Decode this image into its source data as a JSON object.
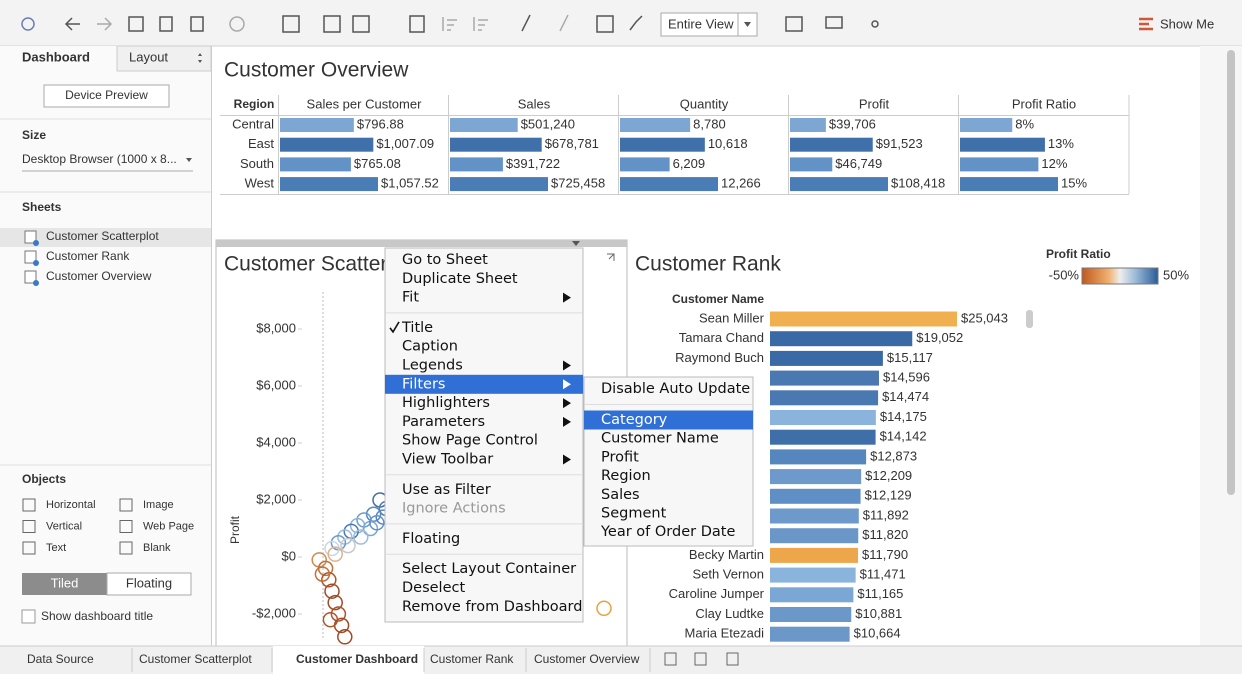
{
  "toolbar": {
    "view": "Entire View",
    "show_me": "Show Me"
  },
  "side_panel": {
    "tabs": [
      "Dashboard",
      "Layout"
    ],
    "device_preview": "Device Preview",
    "size_heading": "Size",
    "size_value": "Desktop Browser (1000 x 8...",
    "sheets_heading": "Sheets",
    "sheets": [
      "Customer Scatterplot",
      "Customer Rank",
      "Customer Overview"
    ],
    "objects_heading": "Objects",
    "objects": [
      "Horizontal",
      "Image",
      "Vertical",
      "Web Page",
      "Text",
      "Blank"
    ],
    "modes": [
      "Tiled",
      "Floating"
    ],
    "show_title": "Show dashboard title"
  },
  "overview": {
    "title": "Customer Overview",
    "region_header": "Region",
    "regions": [
      "Central",
      "East",
      "South",
      "West"
    ],
    "row_colors": [
      "#7ea6d2",
      "#3f70aa",
      "#6392c6",
      "#4a7db5"
    ],
    "columns": [
      {
        "name": "Sales per Customer",
        "values": [
          796.88,
          1007.09,
          765.08,
          1057.52
        ],
        "value_labels": [
          "$796.88",
          "$1,007.09",
          "$765.08",
          "$1,057.52"
        ]
      },
      {
        "name": "Sales",
        "values": [
          501240,
          678781,
          391722,
          725458
        ],
        "value_labels": [
          "$501,240",
          "$678,781",
          "$391,722",
          "$725,458"
        ]
      },
      {
        "name": "Quantity",
        "values": [
          8780,
          10618,
          6209,
          12266
        ],
        "value_labels": [
          "8,780",
          "10,618",
          "6,209",
          "12,266"
        ]
      },
      {
        "name": "Profit",
        "values": [
          39706,
          91523,
          46749,
          108418
        ],
        "value_labels": [
          "$39,706",
          "$91,523",
          "$46,749",
          "$108,418"
        ]
      },
      {
        "name": "Profit Ratio",
        "values": [
          8,
          13,
          12,
          15
        ],
        "value_labels": [
          "8%",
          "13%",
          "12%",
          "15%"
        ]
      }
    ]
  },
  "scatter": {
    "title": "Customer Scatter",
    "y_label": "Profit",
    "xlim": [
      0,
      10000
    ],
    "ylim": [
      -3000,
      9000
    ],
    "yticks": [
      {
        "value": 8000,
        "label": "$8,000"
      },
      {
        "value": 6000,
        "label": "$6,000"
      },
      {
        "value": 4000,
        "label": "$4,000"
      },
      {
        "value": 2000,
        "label": "$2,000"
      },
      {
        "value": 0,
        "label": "$0"
      },
      {
        "value": -2000,
        "label": "-$2,000"
      }
    ],
    "x": [
      2500,
      2700,
      2300,
      2000,
      1800,
      1600,
      1400,
      1200,
      1000,
      2900,
      2600,
      2200,
      1900,
      1500,
      3000,
      2400,
      1100,
      600,
      800,
      900,
      1000,
      1100,
      1200,
      1300,
      700,
      1400,
      950,
      9500
    ],
    "y": [
      2000,
      1700,
      1500,
      1300,
      1100,
      900,
      700,
      500,
      300,
      1900,
      1400,
      1000,
      700,
      400,
      1600,
      1200,
      100,
      -100,
      -400,
      -800,
      -1200,
      -1600,
      -2000,
      -2400,
      -600,
      -2800,
      -2200,
      -1800
    ],
    "colors": [
      "#3f6fa9",
      "#4a78b0",
      "#5a88bf",
      "#6d9acb",
      "#8ab4dc",
      "#4a78b0",
      "#9cbbd9",
      "#6d9acb",
      "#c8d7e6",
      "#3f6fa9",
      "#5586bd",
      "#7aa7d3",
      "#9cbbd9",
      "#c8c8c8",
      "#3f6fa9",
      "#6392c6",
      "#e0b08a",
      "#d08a4a",
      "#c0703a",
      "#b0542a",
      "#a04a28",
      "#a04a28",
      "#b0542a",
      "#a04a28",
      "#c0703a",
      "#a04a28",
      "#b0542a",
      "#e8a23a"
    ]
  },
  "rank": {
    "title": "Customer Rank",
    "header": "Customer Name",
    "legend_title": "Profit Ratio",
    "legend_labels": [
      "-50%",
      "50%"
    ],
    "names": [
      "Sean Miller",
      "Tamara Chand",
      "Raymond Buch",
      null,
      null,
      null,
      null,
      null,
      null,
      null,
      null,
      null,
      "Becky Martin",
      "Seth Vernon",
      "Caroline Jumper",
      "Clay Ludtke",
      "Maria Etezadi"
    ],
    "values": [
      25043,
      19052,
      15117,
      14596,
      14474,
      14175,
      14142,
      12873,
      12209,
      12129,
      11892,
      11820,
      11790,
      11471,
      11165,
      10881,
      10664
    ],
    "value_labels": [
      "$25,043",
      "$19,052",
      "$15,117",
      "$14,596",
      "$14,474",
      "$14,175",
      "$14,142",
      "$12,873",
      "$12,209",
      "$12,129",
      "$11,892",
      "$11,820",
      "$11,790",
      "$11,471",
      "$11,165",
      "$10,881",
      "$10,664"
    ],
    "colors": [
      "#f0b050",
      "#3a6aa5",
      "#3a6aa5",
      "#4a78b0",
      "#4a78b0",
      "#8ab4dc",
      "#3f6fa9",
      "#5586bd",
      "#6d9acb",
      "#5f8fc4",
      "#6d9acb",
      "#6a97c8",
      "#eda64a",
      "#8ab4dc",
      "#7aa7d3",
      "#6b98c9",
      "#6b98c9"
    ]
  },
  "context_menu": {
    "groups": [
      [
        {
          "label": "Go to Sheet"
        },
        {
          "label": "Duplicate Sheet"
        },
        {
          "label": "Fit",
          "submenu": true
        }
      ],
      [
        {
          "label": "Title",
          "checked": true
        },
        {
          "label": "Caption"
        },
        {
          "label": "Legends",
          "submenu": true
        },
        {
          "label": "Filters",
          "submenu": true,
          "active": true
        },
        {
          "label": "Highlighters",
          "submenu": true
        },
        {
          "label": "Parameters",
          "submenu": true
        },
        {
          "label": "Show Page Control"
        },
        {
          "label": "View Toolbar",
          "submenu": true
        }
      ],
      [
        {
          "label": "Use as Filter"
        },
        {
          "label": "Ignore Actions",
          "disabled": true
        }
      ],
      [
        {
          "label": "Floating"
        }
      ],
      [
        {
          "label": "Select Layout Container"
        },
        {
          "label": "Deselect"
        },
        {
          "label": "Remove from Dashboard"
        }
      ]
    ]
  },
  "filter_submenu": {
    "top": "Disable Auto Update",
    "items": [
      "Category",
      "Customer Name",
      "Profit",
      "Region",
      "Sales",
      "Segment",
      "Year of Order Date"
    ],
    "active": 0
  },
  "bottom_tabs": {
    "tabs": [
      "Data Source",
      "Customer Scatterplot",
      "Customer Dashboard",
      "Customer Rank",
      "Customer Overview"
    ],
    "active": 2
  }
}
